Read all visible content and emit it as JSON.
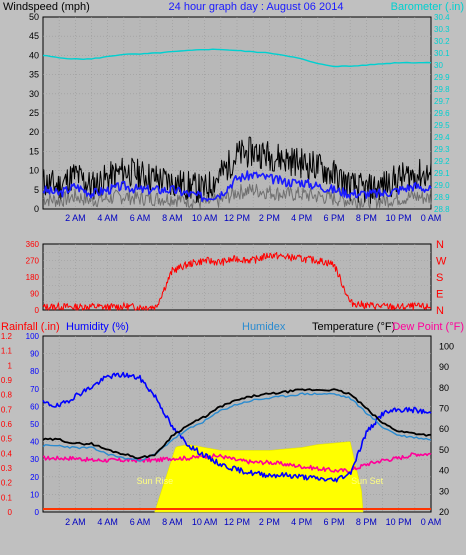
{
  "colors": {
    "background": "#c0c0c0",
    "plot_bg": "#b8b8b8",
    "grid": "#9a9a9a",
    "wind_gust": "#000000",
    "wind_avg": "#1a1aff",
    "wind_min": "#707070",
    "barometer": "#00d0d0",
    "direction": "#ff0000",
    "rainfall": "#ff0000",
    "humidity": "#0000ff",
    "humidex": "#2a8bd0",
    "temperature": "#000000",
    "dewpoint": "#ff0099",
    "solar": "#ffff00",
    "rain_line": "#ff3300"
  },
  "chart_data": [
    {
      "type": "line",
      "title": "24 hour graph day : August 06 2014",
      "ylabel_left": "Windspeed (mph)",
      "ylabel_right": "Barometer (.in)",
      "ylim_left": [
        0,
        50
      ],
      "yticks_left": [
        "0",
        "5",
        "10",
        "15",
        "20",
        "25",
        "30",
        "35",
        "40",
        "45",
        "50"
      ],
      "ylim_right": [
        28.8,
        30.4
      ],
      "yticks_right": [
        "28.8",
        "28.9",
        "29.0",
        "29.1",
        "29.2",
        "29.3",
        "29.4",
        "29.5",
        "29.6",
        "29.7",
        "29.8",
        "29.9",
        "30",
        "30.1",
        "30.2",
        "30.3",
        "30.4"
      ],
      "x_hours": [
        0,
        1,
        2,
        3,
        4,
        5,
        6,
        7,
        8,
        9,
        10,
        11,
        12,
        13,
        14,
        15,
        16,
        17,
        18,
        19,
        20,
        21,
        22,
        23,
        24
      ],
      "xticks": [
        "2 AM",
        "4 AM",
        "6 AM",
        "8 AM",
        "10 AM",
        "12 PM",
        "2 PM",
        "4 PM",
        "6 PM",
        "8 PM",
        "10 PM",
        "0 AM"
      ],
      "grid": true,
      "series": [
        {
          "name": "Gust",
          "values": [
            7,
            6,
            9,
            6,
            8,
            10,
            9,
            8,
            7,
            6,
            5,
            9,
            14,
            15,
            14,
            13,
            12,
            11,
            9,
            6,
            5,
            6,
            8,
            9,
            9
          ]
        },
        {
          "name": "Windspeed",
          "values": [
            5,
            4,
            6,
            4,
            5,
            6,
            5,
            5,
            5,
            4,
            3,
            4,
            8,
            9,
            8,
            7,
            7,
            6,
            5,
            4,
            4,
            4,
            5,
            6,
            5
          ]
        },
        {
          "name": "Barometer",
          "values": [
            30.08,
            30.06,
            30.05,
            30.05,
            30.07,
            30.09,
            30.09,
            30.1,
            30.11,
            30.12,
            30.13,
            30.13,
            30.12,
            30.11,
            30.1,
            30.08,
            30.05,
            30.01,
            29.99,
            29.99,
            30.0,
            30.01,
            30.02,
            30.02,
            30.02
          ]
        }
      ]
    },
    {
      "type": "line",
      "title": "",
      "ylabel_left": "",
      "ylim": [
        0,
        360
      ],
      "yticks": [
        "0",
        "45",
        "90",
        "135",
        "180",
        "225",
        "270",
        "315",
        "360"
      ],
      "right_labels": [
        "N",
        "W",
        "S",
        "E",
        "N"
      ],
      "x_hours": [
        0,
        1,
        2,
        3,
        4,
        5,
        6,
        7,
        8,
        9,
        10,
        11,
        12,
        13,
        14,
        15,
        16,
        17,
        18,
        19,
        20,
        21,
        22,
        23,
        24
      ],
      "grid": true,
      "series": [
        {
          "name": "Wind Direction",
          "values": [
            15,
            20,
            15,
            20,
            15,
            20,
            15,
            18,
            215,
            250,
            270,
            260,
            280,
            270,
            300,
            290,
            280,
            270,
            250,
            40,
            25,
            20,
            15,
            20,
            15
          ]
        }
      ]
    },
    {
      "type": "line",
      "labels": {
        "rainfall": "Rainfall (.in)",
        "humidity": "Humidity (%)",
        "humidex": "Humidex",
        "temperature": "Temperature (°F)",
        "dewpoint": "Dew Point (°F)"
      },
      "ylim_rain": [
        0,
        1.2
      ],
      "yticks_rain": [
        "0",
        "0.1",
        "0.2",
        "0.3",
        "0.4",
        "0.5",
        "0.6",
        "0.7",
        "0.8",
        "0.9",
        "1",
        "1.1",
        "1.2"
      ],
      "ylim_humidity": [
        0,
        100
      ],
      "yticks_humidity": [
        "0",
        "10",
        "20",
        "30",
        "40",
        "50",
        "60",
        "70",
        "80",
        "90",
        "100"
      ],
      "ylim_temp": [
        20,
        105
      ],
      "yticks_temp": [
        "20",
        "30",
        "40",
        "50",
        "60",
        "70",
        "80",
        "90",
        "100"
      ],
      "x_hours": [
        0,
        1,
        2,
        3,
        4,
        5,
        6,
        7,
        8,
        9,
        10,
        11,
        12,
        13,
        14,
        15,
        16,
        17,
        18,
        19,
        20,
        21,
        22,
        23,
        24
      ],
      "xticks": [
        "2 AM",
        "4 AM",
        "6 AM",
        "8 AM",
        "10 AM",
        "12 PM",
        "2 PM",
        "4 PM",
        "6 PM",
        "8 PM",
        "10 PM",
        "0 AM"
      ],
      "grid": true,
      "annotations": {
        "sunrise": "Sun Rise",
        "sunset": "Sun Set",
        "sunrise_hour": 6.9,
        "sunset_hour": 19.8
      },
      "series": [
        {
          "name": "Temperature",
          "values": [
            55,
            55,
            53,
            53,
            50,
            48,
            46,
            48,
            57,
            62,
            66,
            71,
            74,
            76,
            77,
            78,
            79,
            79,
            79,
            77,
            70,
            63,
            59,
            58,
            57
          ]
        },
        {
          "name": "Humidex",
          "values": [
            52,
            52,
            51,
            51,
            48,
            46,
            45,
            48,
            55,
            60,
            64,
            69,
            72,
            74,
            75,
            76,
            77,
            77,
            77,
            75,
            68,
            61,
            57,
            56,
            55
          ]
        },
        {
          "name": "Humidity",
          "values": [
            62,
            60,
            66,
            71,
            77,
            78,
            76,
            65,
            48,
            38,
            32,
            27,
            24,
            22,
            21,
            21,
            20,
            19,
            18,
            22,
            45,
            56,
            58,
            58,
            56
          ]
        },
        {
          "name": "Dew Point",
          "values": [
            46,
            46,
            46,
            45,
            45,
            45,
            45,
            45,
            46,
            46,
            47,
            47,
            45,
            44,
            44,
            43,
            42,
            41,
            40,
            40,
            43,
            45,
            46,
            48,
            48
          ]
        },
        {
          "name": "Rainfall",
          "values": [
            0,
            0,
            0,
            0,
            0,
            0,
            0,
            0,
            0,
            0,
            0,
            0,
            0,
            0,
            0,
            0,
            0,
            0,
            0,
            0,
            0,
            0,
            0,
            0,
            0
          ]
        },
        {
          "name": "Solar",
          "values": [
            0,
            0,
            0,
            0,
            0,
            0,
            0,
            0,
            0.44,
            0.46,
            0.44,
            0.42,
            0.42,
            0.42,
            0.42,
            0.43,
            0.44,
            0.46,
            0.47,
            0.48,
            0,
            0,
            0,
            0,
            0
          ]
        }
      ]
    }
  ]
}
